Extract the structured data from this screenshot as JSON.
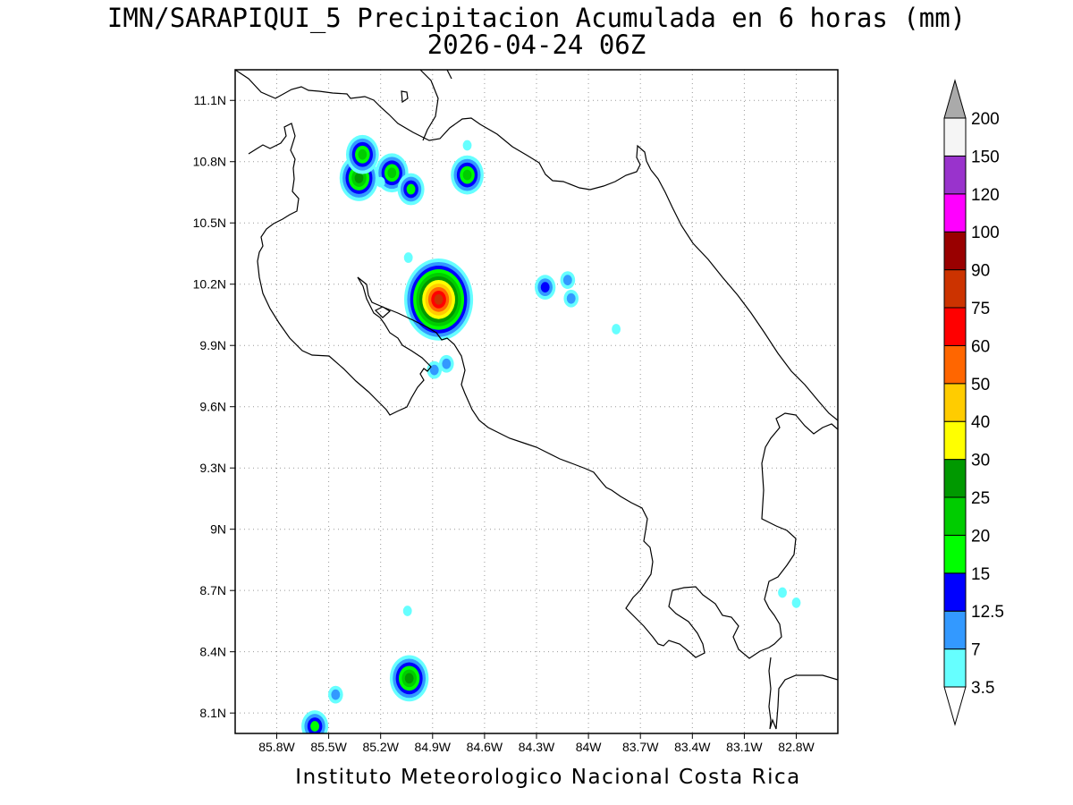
{
  "title": {
    "line1": "IMN/SARAPIQUI_5 Precipitacion Acumulada en 6 horas (mm)",
    "line2": "2026-04-24 06Z"
  },
  "footer": "Instituto Meteorologico Nacional Costa Rica",
  "map": {
    "lon_range": [
      -86.04,
      -82.56
    ],
    "lat_range": [
      8.0,
      11.25
    ],
    "x_ticks": [
      "85.8W",
      "85.5W",
      "85.2W",
      "84.9W",
      "84.6W",
      "84.3W",
      "84W",
      "83.7W",
      "83.4W",
      "83.1W",
      "82.8W"
    ],
    "x_tick_lons": [
      -85.8,
      -85.5,
      -85.2,
      -84.9,
      -84.6,
      -84.3,
      -84.0,
      -83.7,
      -83.4,
      -83.1,
      -82.8
    ],
    "y_ticks": [
      "8.1N",
      "8.4N",
      "8.7N",
      "9N",
      "9.3N",
      "9.6N",
      "9.9N",
      "10.2N",
      "10.5N",
      "10.8N",
      "11.1N"
    ],
    "y_tick_lats": [
      8.1,
      8.4,
      8.7,
      9.0,
      9.3,
      9.6,
      9.9,
      10.2,
      10.5,
      10.8,
      11.1
    ],
    "grid": true
  },
  "colorbar": {
    "levels": [
      "3.5",
      "7",
      "12.5",
      "15",
      "20",
      "25",
      "30",
      "40",
      "50",
      "60",
      "75",
      "90",
      "100",
      "120",
      "150",
      "200"
    ],
    "colors": [
      "#66ffff",
      "#3399ff",
      "#0000ff",
      "#00ff00",
      "#00cc00",
      "#009900",
      "#ffff00",
      "#ffcc00",
      "#ff6600",
      "#ff0000",
      "#cc3300",
      "#990000",
      "#ff00ff",
      "#9933cc",
      "#f5f5f5"
    ],
    "upper_arrow_color": "#aaaaaa",
    "lower_arrow_color": "#ffffff"
  },
  "rain_cells": [
    {
      "lon": -85.325,
      "lat": 10.72,
      "peak": "25"
    },
    {
      "lon": -85.305,
      "lat": 10.835,
      "peak": "20"
    },
    {
      "lon": -85.135,
      "lat": 10.745,
      "peak": "20"
    },
    {
      "lon": -85.025,
      "lat": 10.665,
      "peak": "15"
    },
    {
      "lon": -84.7,
      "lat": 10.735,
      "peak": "20"
    },
    {
      "lon": -84.865,
      "lat": 10.125,
      "peak": "75"
    },
    {
      "lon": -85.2,
      "lat": 10.7,
      "peak": "3.5"
    },
    {
      "lon": -85.04,
      "lat": 10.33,
      "peak": "3.5"
    },
    {
      "lon": -84.25,
      "lat": 10.185,
      "peak": "12.5"
    },
    {
      "lon": -84.12,
      "lat": 10.22,
      "peak": "7"
    },
    {
      "lon": -84.1,
      "lat": 10.13,
      "peak": "7"
    },
    {
      "lon": -83.84,
      "lat": 9.98,
      "peak": "3.5"
    },
    {
      "lon": -84.82,
      "lat": 9.81,
      "peak": "7"
    },
    {
      "lon": -84.89,
      "lat": 9.78,
      "peak": "7"
    },
    {
      "lon": -84.7,
      "lat": 10.88,
      "peak": "3.5"
    },
    {
      "lon": -85.035,
      "lat": 8.27,
      "peak": "25"
    },
    {
      "lon": -85.46,
      "lat": 8.19,
      "peak": "7"
    },
    {
      "lon": -85.58,
      "lat": 8.035,
      "peak": "15"
    },
    {
      "lon": -85.045,
      "lat": 8.6,
      "peak": "3.5"
    },
    {
      "lon": -82.88,
      "lat": 8.69,
      "peak": "3.5"
    },
    {
      "lon": -82.8,
      "lat": 8.64,
      "peak": "3.5"
    }
  ]
}
